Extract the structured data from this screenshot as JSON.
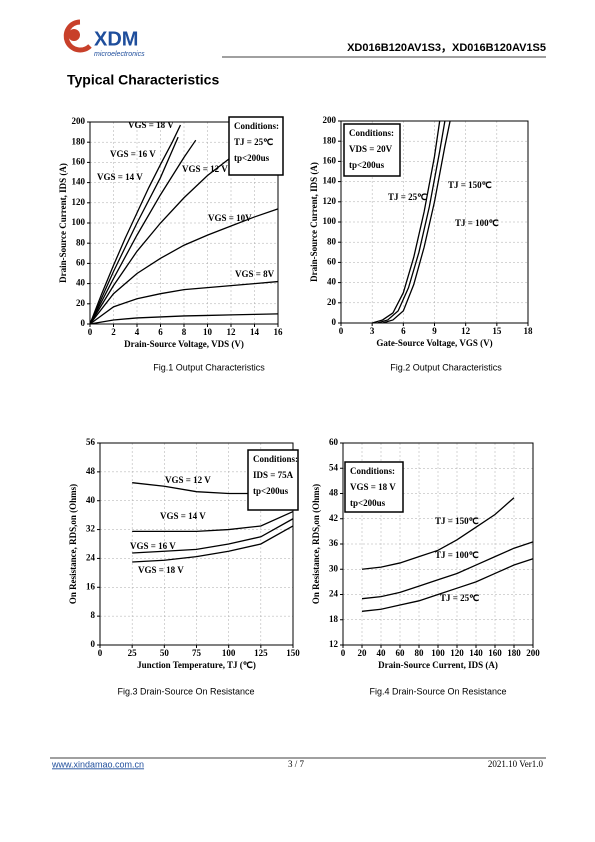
{
  "header": {
    "logo": "XDM",
    "logo_sub": "microelectronics",
    "part_numbers": "XD016B120AV1S3，XD016B120AV1S5"
  },
  "section_title": "Typical Characteristics",
  "chart_data": [
    {
      "type": "line",
      "caption": "Fig.1 Output Characteristics",
      "x_label": "Drain-Source Voltage, VDS (V)",
      "y_label": "Drain-Source Current, IDS (A)",
      "xlim": [
        0,
        16
      ],
      "xticks": [
        0,
        2,
        4,
        6,
        8,
        10,
        12,
        14,
        16
      ],
      "ylim": [
        0,
        200
      ],
      "yticks": [
        0,
        20,
        40,
        60,
        80,
        100,
        120,
        140,
        160,
        180,
        200
      ],
      "grid": true,
      "annotations": [
        "Conditions:",
        "TJ = 25℃",
        "tp<200us"
      ],
      "series": [
        {
          "name": "VGS = 18 V",
          "color": "#000000",
          "x": [
            0,
            1,
            2,
            3,
            4,
            5,
            6,
            7,
            7.7
          ],
          "values": [
            0,
            30,
            58,
            85,
            110,
            135,
            158,
            180,
            197
          ]
        },
        {
          "name": "VGS = 16 V",
          "color": "#000000",
          "x": [
            0,
            2,
            4,
            6,
            7.5
          ],
          "values": [
            0,
            52,
            100,
            145,
            185
          ]
        },
        {
          "name": "VGS = 14 V",
          "color": "#000000",
          "x": [
            0,
            2,
            4,
            6,
            8,
            9
          ],
          "values": [
            0,
            45,
            88,
            128,
            165,
            182
          ]
        },
        {
          "name": "VGS = 12 V",
          "color": "#000000",
          "x": [
            0,
            2,
            4,
            6,
            8,
            10,
            12,
            12.6
          ],
          "values": [
            0,
            38,
            72,
            100,
            125,
            147,
            165,
            172
          ]
        },
        {
          "name": "VGS = 10V",
          "color": "#000000",
          "x": [
            0,
            2,
            4,
            6,
            8,
            10,
            12,
            14,
            16
          ],
          "values": [
            0,
            30,
            50,
            65,
            78,
            88,
            97,
            106,
            114
          ]
        },
        {
          "name": "VGS = 8V",
          "color": "#000000",
          "x": [
            0,
            2,
            4,
            6,
            8,
            10,
            12,
            14,
            16
          ],
          "values": [
            0,
            17,
            25,
            30,
            34,
            36,
            38,
            40,
            42
          ]
        },
        {
          "color": "#000000",
          "x": [
            0,
            2,
            4,
            6,
            8,
            10,
            12,
            14,
            16
          ],
          "values": [
            0,
            4,
            6,
            7,
            8,
            8.5,
            9,
            9.5,
            10
          ]
        }
      ]
    },
    {
      "type": "line",
      "caption": "Fig.2 Output Characteristics",
      "x_label": "Gate-Source Voltage, VGS (V)",
      "y_label": "Drain-Source Current, IDS (A)",
      "xlim": [
        0,
        18
      ],
      "xticks": [
        0,
        3,
        6,
        9,
        12,
        15,
        18
      ],
      "ylim": [
        0,
        200
      ],
      "yticks": [
        0,
        20,
        40,
        60,
        80,
        100,
        120,
        140,
        160,
        180,
        200
      ],
      "grid": true,
      "annotations": [
        "Conditions:",
        "VDS = 20V",
        "tp<200us"
      ],
      "series": [
        {
          "name": "TJ = 25℃",
          "color": "#000000",
          "x": [
            4,
            5,
            6,
            7,
            8,
            9,
            10,
            10.5
          ],
          "values": [
            0,
            3,
            12,
            38,
            75,
            120,
            175,
            200
          ]
        },
        {
          "name": "TJ = 150℃",
          "color": "#000000",
          "x": [
            3,
            4,
            5,
            6,
            7,
            8,
            9,
            9.5
          ],
          "values": [
            0,
            3,
            10,
            30,
            65,
            110,
            165,
            200
          ]
        },
        {
          "name": "TJ = 100℃",
          "color": "#000000",
          "x": [
            3.5,
            4.5,
            5.5,
            6.5,
            7.5,
            8.5,
            9.5,
            10
          ],
          "values": [
            0,
            3,
            12,
            35,
            70,
            115,
            170,
            200
          ]
        }
      ]
    },
    {
      "type": "line",
      "caption": "Fig.3 Drain-Source On Resistance",
      "x_label": "Junction Temperature, TJ (℃)",
      "y_label": "On Resistance, RDS,on (Ohms)",
      "xlim": [
        0,
        150
      ],
      "xticks": [
        0,
        25,
        50,
        75,
        100,
        125,
        150
      ],
      "ylim": [
        0,
        56
      ],
      "yticks": [
        0,
        8,
        16,
        24,
        32,
        40,
        48,
        56
      ],
      "grid": true,
      "annotations": [
        "Conditions:",
        "IDS = 75A",
        "tp<200us"
      ],
      "series": [
        {
          "name": "VGS = 12 V",
          "color": "#000000",
          "x": [
            25,
            50,
            75,
            100,
            125
          ],
          "values": [
            45,
            44,
            42.5,
            42,
            42
          ]
        },
        {
          "name": "VGS = 14 V",
          "color": "#000000",
          "x": [
            25,
            50,
            75,
            100,
            125,
            150
          ],
          "values": [
            31.5,
            31.5,
            31.5,
            32,
            33,
            37
          ]
        },
        {
          "name": "VGS = 16 V",
          "color": "#000000",
          "x": [
            25,
            50,
            75,
            100,
            125,
            150
          ],
          "values": [
            25.5,
            26,
            26.5,
            28,
            30,
            35
          ]
        },
        {
          "name": "VGS = 18 V",
          "color": "#000000",
          "x": [
            25,
            50,
            75,
            100,
            125,
            150
          ],
          "values": [
            23,
            23.5,
            24.5,
            26,
            28,
            33
          ]
        }
      ]
    },
    {
      "type": "line",
      "caption": "Fig.4 Drain-Source On Resistance",
      "x_label": "Drain-Source Current, IDS (A)",
      "y_label": "On Resistance, RDS,on (Ohms)",
      "xlim": [
        0,
        200
      ],
      "xticks": [
        0,
        20,
        40,
        60,
        80,
        100,
        120,
        140,
        160,
        180,
        200
      ],
      "ylim": [
        12,
        60
      ],
      "yticks": [
        12,
        18,
        24,
        30,
        36,
        42,
        48,
        54,
        60
      ],
      "grid": true,
      "annotations": [
        "Conditions:",
        "VGS = 18 V",
        "tp<200us"
      ],
      "series": [
        {
          "name": "TJ = 150℃",
          "color": "#000000",
          "x": [
            20,
            40,
            60,
            80,
            100,
            120,
            140,
            160,
            180
          ],
          "values": [
            30,
            30.5,
            31.5,
            33,
            34.5,
            37,
            40,
            43,
            47
          ]
        },
        {
          "name": "TJ = 100℃",
          "color": "#000000",
          "x": [
            20,
            40,
            60,
            80,
            100,
            120,
            140,
            160,
            180,
            200
          ],
          "values": [
            23,
            23.5,
            24.5,
            26,
            27.5,
            29,
            31,
            33,
            35,
            36.5
          ]
        },
        {
          "name": "TJ = 25℃",
          "color": "#000000",
          "x": [
            20,
            40,
            60,
            80,
            100,
            120,
            140,
            160,
            180,
            200
          ],
          "values": [
            20,
            20.5,
            21.5,
            22.5,
            24,
            25.5,
            27,
            29,
            31,
            32.5
          ]
        }
      ]
    }
  ],
  "footer": {
    "url": "www.xindamao.com.cn",
    "page": "3 / 7",
    "version": "2021.10  Ver1.0"
  }
}
